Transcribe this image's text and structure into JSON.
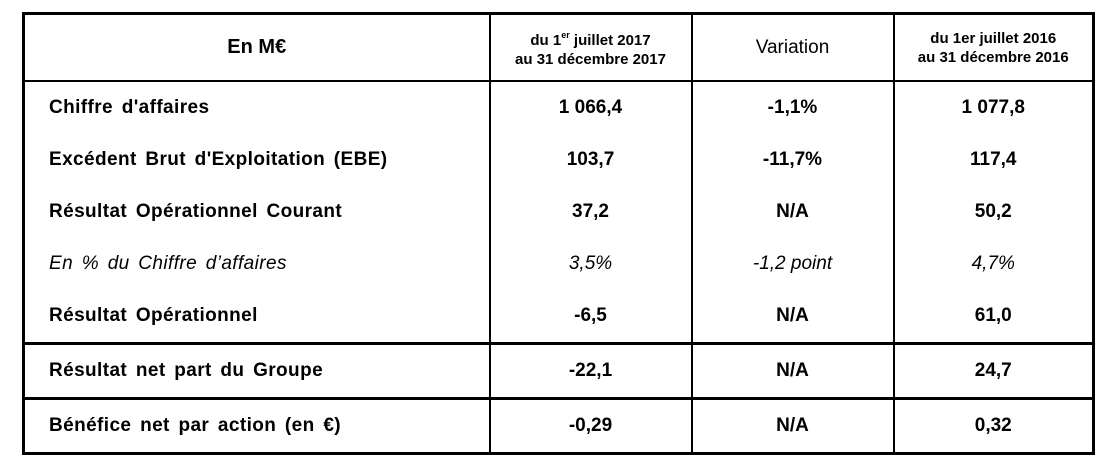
{
  "table": {
    "header": {
      "col1": "En M€",
      "col2_line1_pre": "du 1",
      "col2_line1_sup": "er",
      "col2_line1_post": " juillet 2017",
      "col2_line2": "au 31 décembre 2017",
      "col3": "Variation",
      "col4_line1": "du 1er juillet 2016",
      "col4_line2": "au 31 décembre 2016"
    },
    "rows": [
      {
        "label": "Chiffre d'affaires",
        "v2017": "1 066,4",
        "variation": "-1,1%",
        "v2016": "1 077,8"
      },
      {
        "label": "Excédent Brut d'Exploitation (EBE)",
        "v2017": "103,7",
        "variation": "-11,7%",
        "v2016": "117,4"
      },
      {
        "label": "Résultat Opérationnel Courant",
        "v2017": "37,2",
        "variation": "N/A",
        "v2016": "50,2"
      },
      {
        "label": "En % du Chiffre d’affaires",
        "v2017": "3,5%",
        "variation": "-1,2 point",
        "v2016": "4,7%"
      },
      {
        "label": "Résultat Opérationnel",
        "v2017": "-6,5",
        "variation": "N/A",
        "v2016": "61,0"
      },
      {
        "label": "Résultat net part du Groupe",
        "v2017": "-22,1",
        "variation": "N/A",
        "v2016": "24,7"
      },
      {
        "label": "Bénéfice net par action (en €)",
        "v2017": "-0,29",
        "variation": "N/A",
        "v2016": "0,32"
      }
    ]
  }
}
